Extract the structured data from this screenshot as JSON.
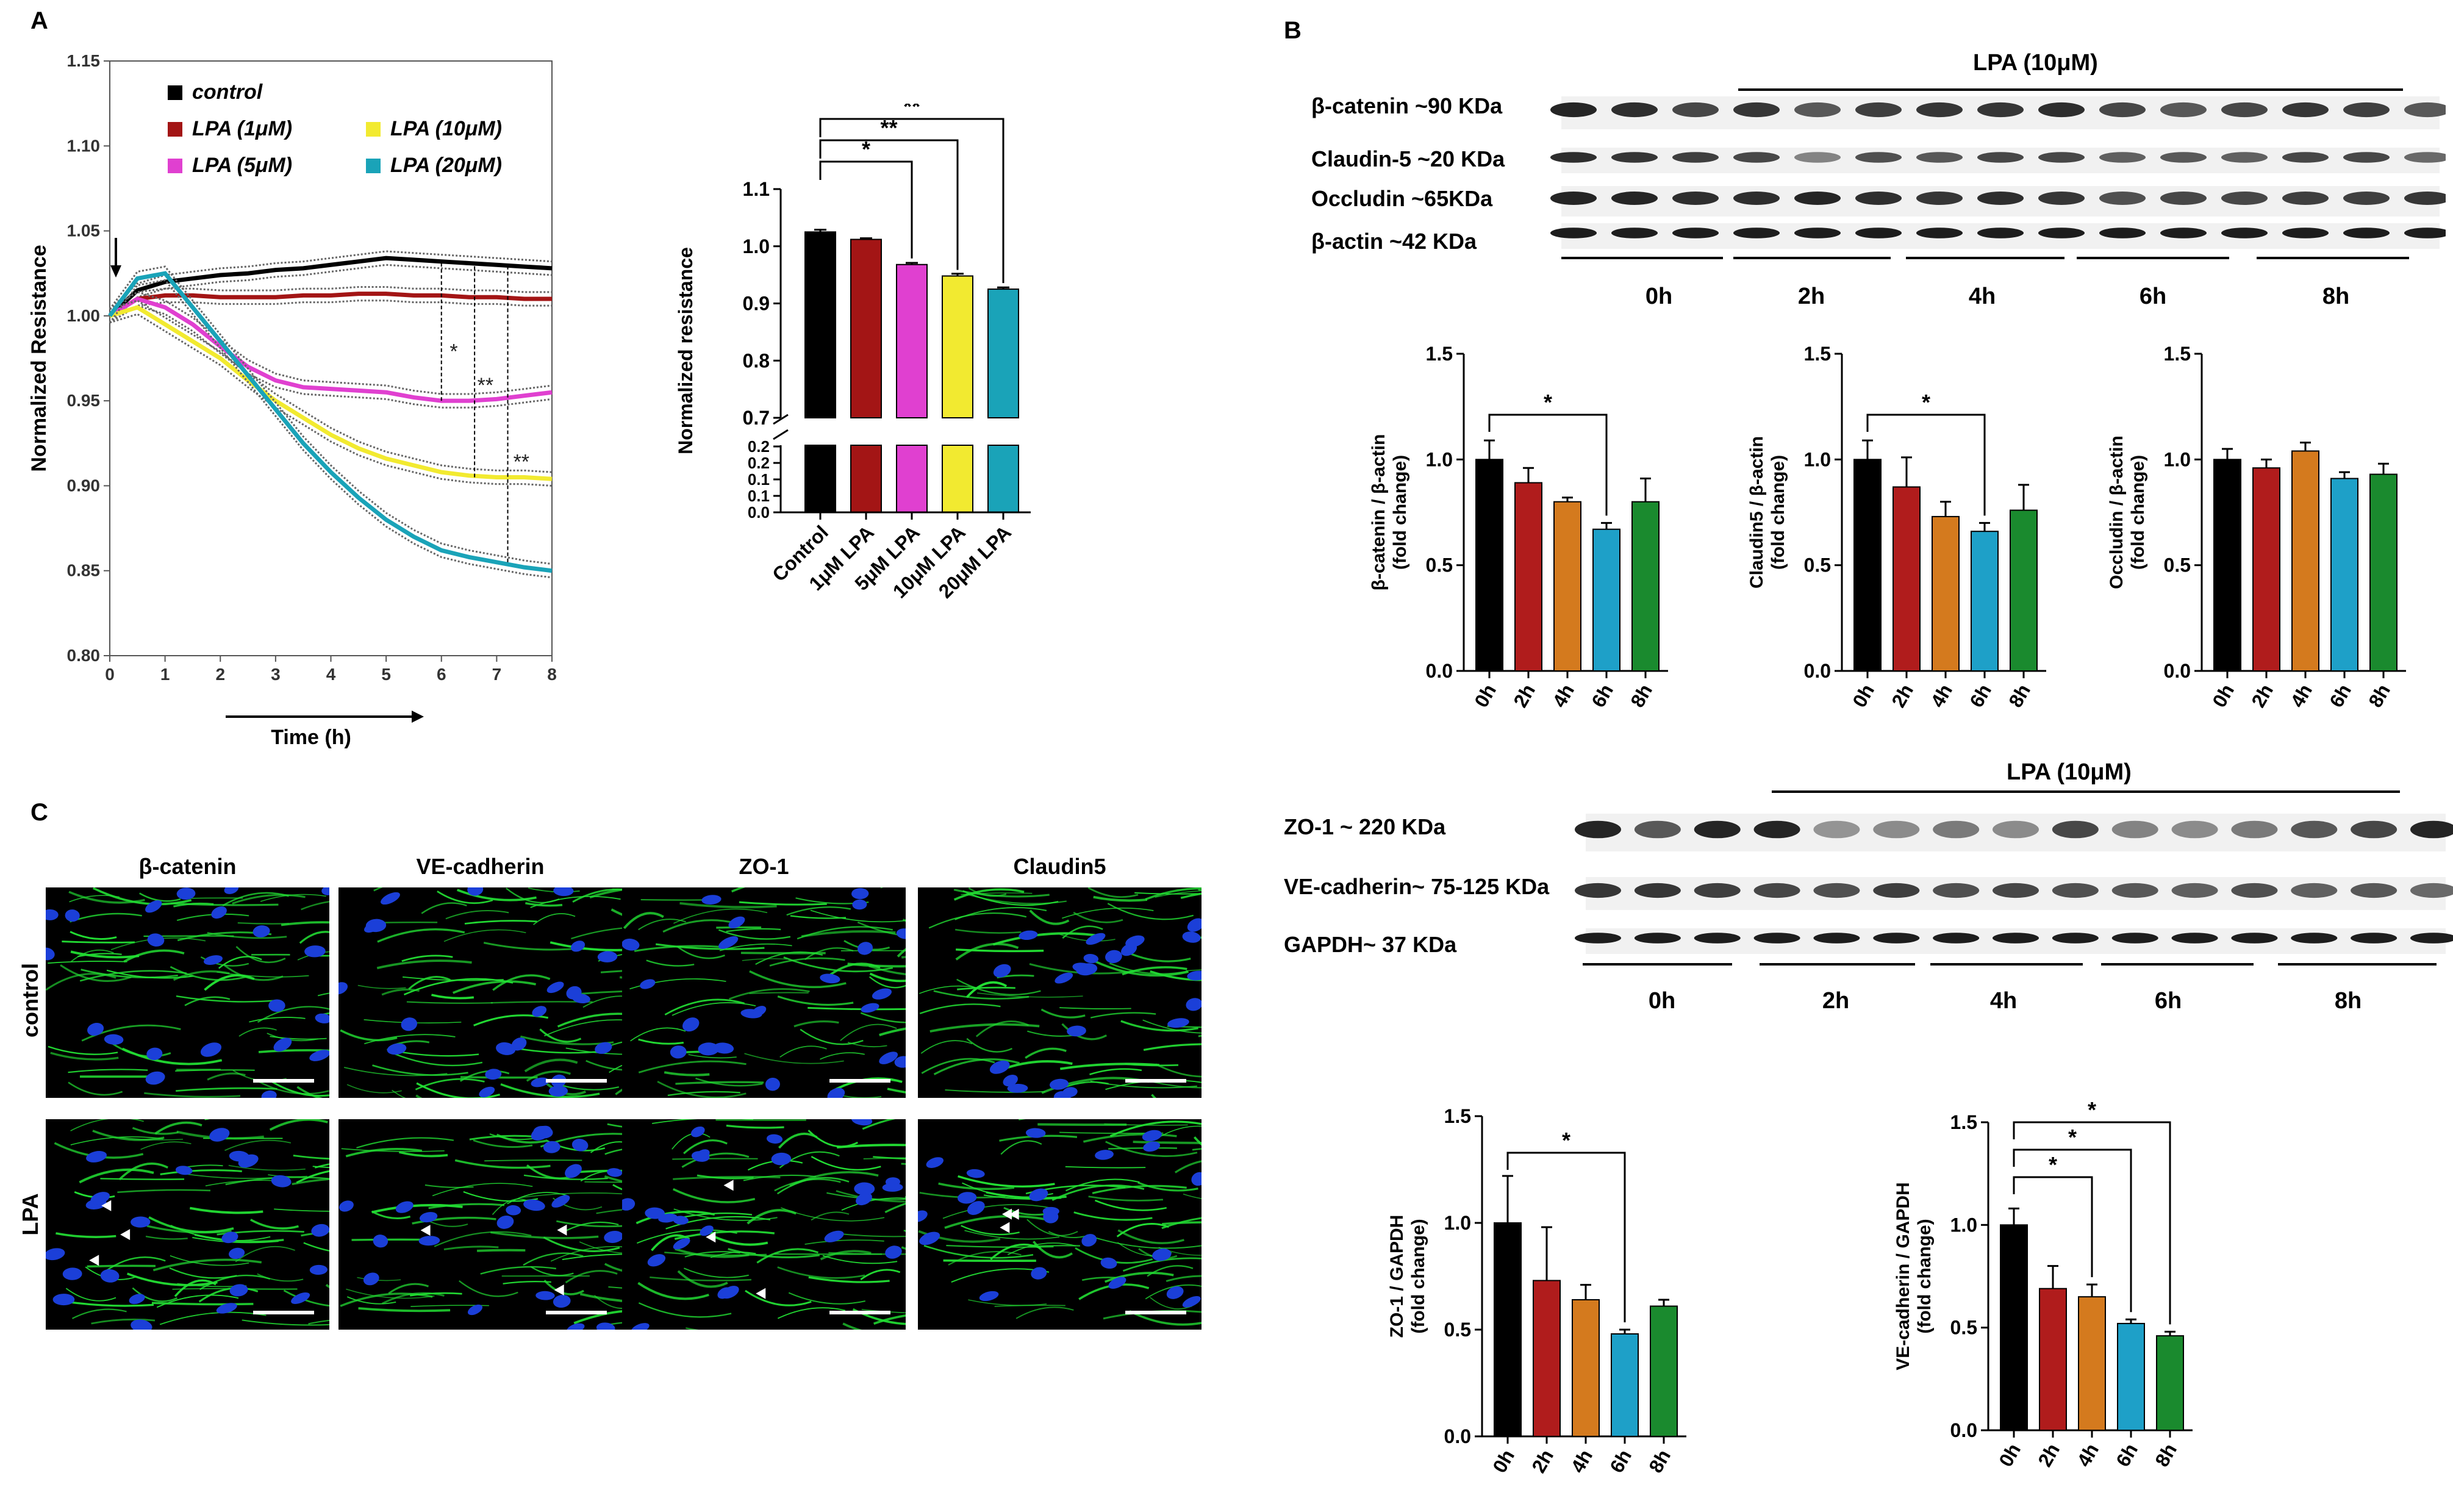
{
  "panels": {
    "a": "A",
    "b": "B",
    "c": "C"
  },
  "colors": {
    "control": "#000000",
    "lpa1": "#a31515",
    "lpa5": "#e040d0",
    "lpa10": "#f2ea30",
    "lpa20": "#1aa3b8",
    "h0": "#000000",
    "h2": "#b01c1c",
    "h4": "#d47a1e",
    "h6": "#1ea0c8",
    "h8": "#1a8a2e",
    "if_green": "#22dd33",
    "if_blue": "#1b3fd8"
  },
  "chart_data": [
    {
      "id": "ecis_timecourse",
      "type": "line",
      "xlabel": "Time (h)",
      "ylabel": "Normalized Resistance",
      "xlim": [
        0,
        8
      ],
      "ylim": [
        0.8,
        1.15
      ],
      "xticks": [
        "0",
        "1",
        "2",
        "3",
        "4",
        "5",
        "6",
        "7",
        "8"
      ],
      "yticks": [
        "0.80",
        "0.85",
        "0.90",
        "0.95",
        "1.00",
        "1.05",
        "1.10",
        "1.15"
      ],
      "legend": [
        "control",
        "LPA (1μM)",
        "LPA (10μM)",
        "LPA (5μM)",
        "LPA (20μM)"
      ],
      "x": [
        0,
        0.5,
        1,
        1.5,
        2,
        2.5,
        3,
        3.5,
        4,
        4.5,
        5,
        5.5,
        6,
        6.5,
        7,
        7.5,
        8
      ],
      "series": [
        {
          "name": "control",
          "values": [
            1.0,
            1.015,
            1.02,
            1.022,
            1.024,
            1.025,
            1.027,
            1.028,
            1.03,
            1.032,
            1.034,
            1.033,
            1.032,
            1.031,
            1.03,
            1.029,
            1.028
          ]
        },
        {
          "name": "LPA (1μM)",
          "values": [
            1.0,
            1.01,
            1.012,
            1.012,
            1.011,
            1.011,
            1.011,
            1.012,
            1.012,
            1.013,
            1.013,
            1.012,
            1.012,
            1.011,
            1.011,
            1.01,
            1.01
          ]
        },
        {
          "name": "LPA (5μM)",
          "values": [
            1.0,
            1.01,
            1.005,
            0.995,
            0.982,
            0.97,
            0.962,
            0.958,
            0.957,
            0.956,
            0.955,
            0.952,
            0.95,
            0.95,
            0.951,
            0.953,
            0.955
          ]
        },
        {
          "name": "LPA (10μM)",
          "values": [
            1.0,
            1.005,
            0.995,
            0.985,
            0.975,
            0.962,
            0.95,
            0.94,
            0.93,
            0.922,
            0.916,
            0.912,
            0.908,
            0.906,
            0.905,
            0.905,
            0.904
          ]
        },
        {
          "name": "LPA (20μM)",
          "values": [
            1.0,
            1.022,
            1.025,
            1.005,
            0.985,
            0.965,
            0.945,
            0.925,
            0.908,
            0.893,
            0.88,
            0.87,
            0.862,
            0.858,
            0.855,
            0.852,
            0.85
          ]
        }
      ],
      "annotations": [
        "*",
        "**",
        "**"
      ]
    },
    {
      "id": "ecis_bar",
      "type": "bar",
      "ylabel": "Normalized resistance",
      "categories": [
        "Control",
        "1μM LPA",
        "5μM LPA",
        "10μM LPA",
        "20μM LPA"
      ],
      "values": [
        1.025,
        1.012,
        0.968,
        0.948,
        0.925
      ],
      "errors": [
        0.004,
        0.002,
        0.003,
        0.004,
        0.003
      ],
      "yticks_upper": [
        "0.7",
        "0.8",
        "0.9",
        "1.0",
        "1.1"
      ],
      "yticks_lower": [
        "0.0",
        "0.1",
        "0.1",
        "0.2",
        "0.2"
      ],
      "ylim_upper": [
        0.7,
        1.1
      ],
      "significance": [
        "*",
        "**",
        "**"
      ]
    },
    {
      "id": "bcatenin_bar",
      "type": "bar",
      "ylabel": "β-catenin / β-actin (fold change)",
      "categories": [
        "0h",
        "2h",
        "4h",
        "6h",
        "8h"
      ],
      "values": [
        1.0,
        0.89,
        0.8,
        0.67,
        0.8
      ],
      "errors": [
        0.09,
        0.07,
        0.02,
        0.03,
        0.11
      ],
      "ylim": [
        0,
        1.5
      ],
      "yticks": [
        "0.0",
        "0.5",
        "1.0",
        "1.5"
      ],
      "significance": [
        "*"
      ]
    },
    {
      "id": "claudin5_bar",
      "type": "bar",
      "ylabel": "Claudin5 / β-actin (fold change)",
      "categories": [
        "0h",
        "2h",
        "4h",
        "6h",
        "8h"
      ],
      "values": [
        1.0,
        0.87,
        0.73,
        0.66,
        0.76
      ],
      "errors": [
        0.09,
        0.14,
        0.07,
        0.04,
        0.12
      ],
      "ylim": [
        0,
        1.5
      ],
      "yticks": [
        "0.0",
        "0.5",
        "1.0",
        "1.5"
      ],
      "significance": [
        "*"
      ]
    },
    {
      "id": "occludin_bar",
      "type": "bar",
      "ylabel": "Occludin / β-actin (fold change)",
      "categories": [
        "0h",
        "2h",
        "4h",
        "6h",
        "8h"
      ],
      "values": [
        1.0,
        0.96,
        1.04,
        0.91,
        0.93
      ],
      "errors": [
        0.05,
        0.04,
        0.04,
        0.03,
        0.05
      ],
      "ylim": [
        0,
        1.5
      ],
      "yticks": [
        "0.0",
        "0.5",
        "1.0",
        "1.5"
      ],
      "significance": []
    },
    {
      "id": "zo1_bar",
      "type": "bar",
      "ylabel": "ZO-1 / GAPDH (fold change)",
      "categories": [
        "0h",
        "2h",
        "4h",
        "6h",
        "8h"
      ],
      "values": [
        1.0,
        0.73,
        0.64,
        0.48,
        0.61
      ],
      "errors": [
        0.22,
        0.25,
        0.07,
        0.02,
        0.03
      ],
      "ylim": [
        0,
        1.5
      ],
      "yticks": [
        "0.0",
        "0.5",
        "1.0",
        "1.5"
      ],
      "significance": [
        "*"
      ]
    },
    {
      "id": "vecadherin_bar",
      "type": "bar",
      "ylabel": "VE-cadherin / GAPDH (fold change)",
      "categories": [
        "0h",
        "2h",
        "4h",
        "6h",
        "8h"
      ],
      "values": [
        1.0,
        0.69,
        0.65,
        0.52,
        0.46
      ],
      "errors": [
        0.08,
        0.11,
        0.06,
        0.02,
        0.02
      ],
      "ylim": [
        0,
        1.5
      ],
      "yticks": [
        "0.0",
        "0.5",
        "1.0",
        "1.5"
      ],
      "significance": [
        "*",
        "*",
        "*"
      ]
    }
  ],
  "blot1": {
    "header": "LPA (10μM)",
    "rows": [
      "β-catenin ~90 KDa",
      "Claudin-5 ~20 KDa",
      "Occludin  ~65KDa",
      "β-actin ~42 KDa"
    ],
    "times": [
      "0h",
      "2h",
      "4h",
      "6h",
      "8h"
    ]
  },
  "blot2": {
    "header": "LPA (10μM)",
    "rows": [
      "ZO-1 ~ 220 KDa",
      "VE-cadherin~ 75-125 KDa",
      "GAPDH~ 37 KDa"
    ],
    "times": [
      "0h",
      "2h",
      "4h",
      "6h",
      "8h"
    ]
  },
  "if_panel": {
    "columns": [
      "β-catenin",
      "VE-cadherin",
      "ZO-1",
      "Claudin5"
    ],
    "rows": [
      "control",
      "LPA"
    ]
  }
}
